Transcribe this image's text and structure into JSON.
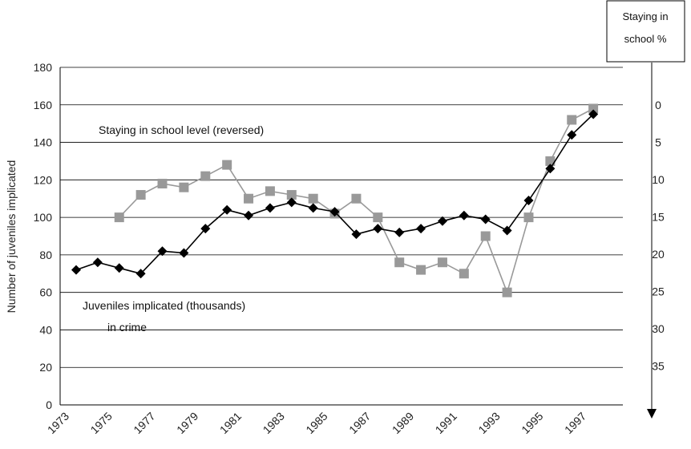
{
  "chart_data": {
    "type": "line",
    "ylabel": "Number of juveniles implicated",
    "right_axis_label_line1": "Staying in",
    "right_axis_label_line2": "school %",
    "annotation_school": "Staying in school level (reversed)",
    "annotation_juveniles_line1": "Juveniles implicated (thousands)",
    "annotation_juveniles_line2": "in crime",
    "x_ticks": [
      "1973",
      "1975",
      "1977",
      "1979",
      "1981",
      "1983",
      "1985",
      "1987",
      "1989",
      "1991",
      "1993",
      "1995",
      "1997"
    ],
    "ylim": [
      0,
      180
    ],
    "y_ticks": [
      0,
      20,
      40,
      60,
      80,
      100,
      120,
      140,
      160,
      180
    ],
    "right_ticks": [
      0,
      5,
      10,
      15,
      20,
      25,
      30,
      35
    ],
    "right_axis_reversed": true,
    "grid": true,
    "series": [
      {
        "name": "Juveniles implicated (thousands) in crime",
        "color": "#000000",
        "marker": "diamond",
        "x": [
          1973,
          1974,
          1975,
          1976,
          1977,
          1978,
          1979,
          1980,
          1981,
          1982,
          1983,
          1984,
          1985,
          1986,
          1987,
          1988,
          1989,
          1990,
          1991,
          1992,
          1993,
          1994,
          1995,
          1996,
          1997
        ],
        "values": [
          72,
          76,
          73,
          70,
          82,
          81,
          94,
          104,
          101,
          105,
          108,
          105,
          103,
          91,
          94,
          92,
          94,
          98,
          101,
          99,
          93,
          109,
          126,
          144,
          155
        ]
      },
      {
        "name": "Staying in school level (reversed)",
        "color": "#999999",
        "marker": "square",
        "x": [
          1975,
          1976,
          1977,
          1978,
          1979,
          1980,
          1981,
          1982,
          1983,
          1984,
          1985,
          1986,
          1987,
          1988,
          1989,
          1990,
          1991,
          1992,
          1993,
          1994,
          1995,
          1996,
          1997
        ],
        "values": [
          100,
          112,
          118,
          116,
          122,
          128,
          110,
          114,
          112,
          110,
          102,
          110,
          100,
          76,
          72,
          76,
          70,
          90,
          60,
          100,
          130,
          152,
          158
        ]
      }
    ]
  }
}
